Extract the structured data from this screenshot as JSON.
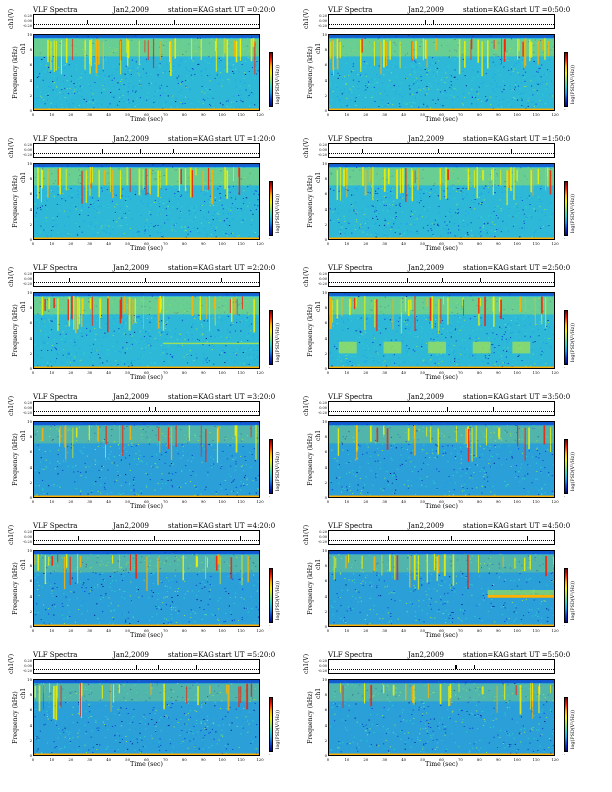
{
  "figure": {
    "common": {
      "header_title": "VLF Spectra",
      "date": "Jan2,2009",
      "station": "station=KAG",
      "timeline_label": "ch1(V)",
      "timeline_ticks": [
        "0.20",
        "0.00",
        "-0.20"
      ],
      "channel_label": "ch1",
      "ylabel": "Frequency (kHz)",
      "xlabel": "Time (sec)",
      "colorbar_label": "log(PSD(V²/Hz))",
      "colorbar_min": "-",
      "x_ticks": [
        "0",
        "10",
        "20",
        "30",
        "40",
        "50",
        "60",
        "70",
        "80",
        "90",
        "100",
        "110",
        "120"
      ],
      "y_ticks": [
        "10",
        "8",
        "6",
        "4",
        "2",
        "0"
      ]
    },
    "panels": [
      {
        "start": "start UT =0:20:0"
      },
      {
        "start": "start UT =0:50:0"
      },
      {
        "start": "start UT =1:20:0"
      },
      {
        "start": "start UT =1:50:0"
      },
      {
        "start": "start UT =2:20:0"
      },
      {
        "start": "start UT =2:50:0"
      },
      {
        "start": "start UT =3:20:0"
      },
      {
        "start": "start UT =3:50:0"
      },
      {
        "start": "start UT =4:20:0"
      },
      {
        "start": "start UT =4:50:0"
      },
      {
        "start": "start UT =5:20:0"
      },
      {
        "start": "start UT =5:50:0"
      }
    ]
  },
  "chart_data": {
    "type": "heatmap",
    "panel_count": 12,
    "layout": "6 rows x 2 columns",
    "x_axis": {
      "label": "Time (sec)",
      "range": [
        0,
        120
      ]
    },
    "y_axis": {
      "label": "Frequency (kHz)",
      "range": [
        0,
        10
      ]
    },
    "colorbar": {
      "label": "log(PSD(V²/Hz))",
      "colors": [
        "#000a80",
        "#0a3cd0",
        "#1a9fe6",
        "#2fd6c9",
        "#9ae05a",
        "#f5f000",
        "#ffb000",
        "#ff1a00",
        "#7a0000"
      ]
    },
    "background_color": "#2db8d8",
    "series": [
      {
        "start_ut": "0:20:0",
        "features": [
          "broadband impulses 6-10 kHz",
          "dense red impulses"
        ]
      },
      {
        "start_ut": "0:50:0",
        "features": [
          "broadband impulses 6-10 kHz"
        ]
      },
      {
        "start_ut": "1:20:0",
        "features": [
          "impulsive sferics 5-10 kHz"
        ]
      },
      {
        "start_ut": "1:50:0",
        "features": [
          "impulsive sferics 5-10 kHz"
        ]
      },
      {
        "start_ut": "2:20:0",
        "features": [
          "band near 7-8 kHz",
          "narrow band ~3 kHz after 68 s"
        ]
      },
      {
        "start_ut": "2:50:0",
        "features": [
          "band near 7-8 kHz",
          "periodic patches ~2-3 kHz"
        ]
      },
      {
        "start_ut": "3:20:0",
        "features": [
          "sparse impulses",
          "blue background"
        ]
      },
      {
        "start_ut": "3:50:0",
        "features": [
          "sparse impulses",
          "blue background"
        ]
      },
      {
        "start_ut": "4:20:0",
        "features": [
          "sparse impulses 6-10 kHz"
        ]
      },
      {
        "start_ut": "4:50:0",
        "features": [
          "narrowband emission ~4 kHz after 85 s"
        ]
      },
      {
        "start_ut": "5:20:0",
        "features": [
          "impulses 6-10 kHz"
        ]
      },
      {
        "start_ut": "5:50:0",
        "features": [
          "impulses 6-10 kHz"
        ]
      }
    ]
  }
}
